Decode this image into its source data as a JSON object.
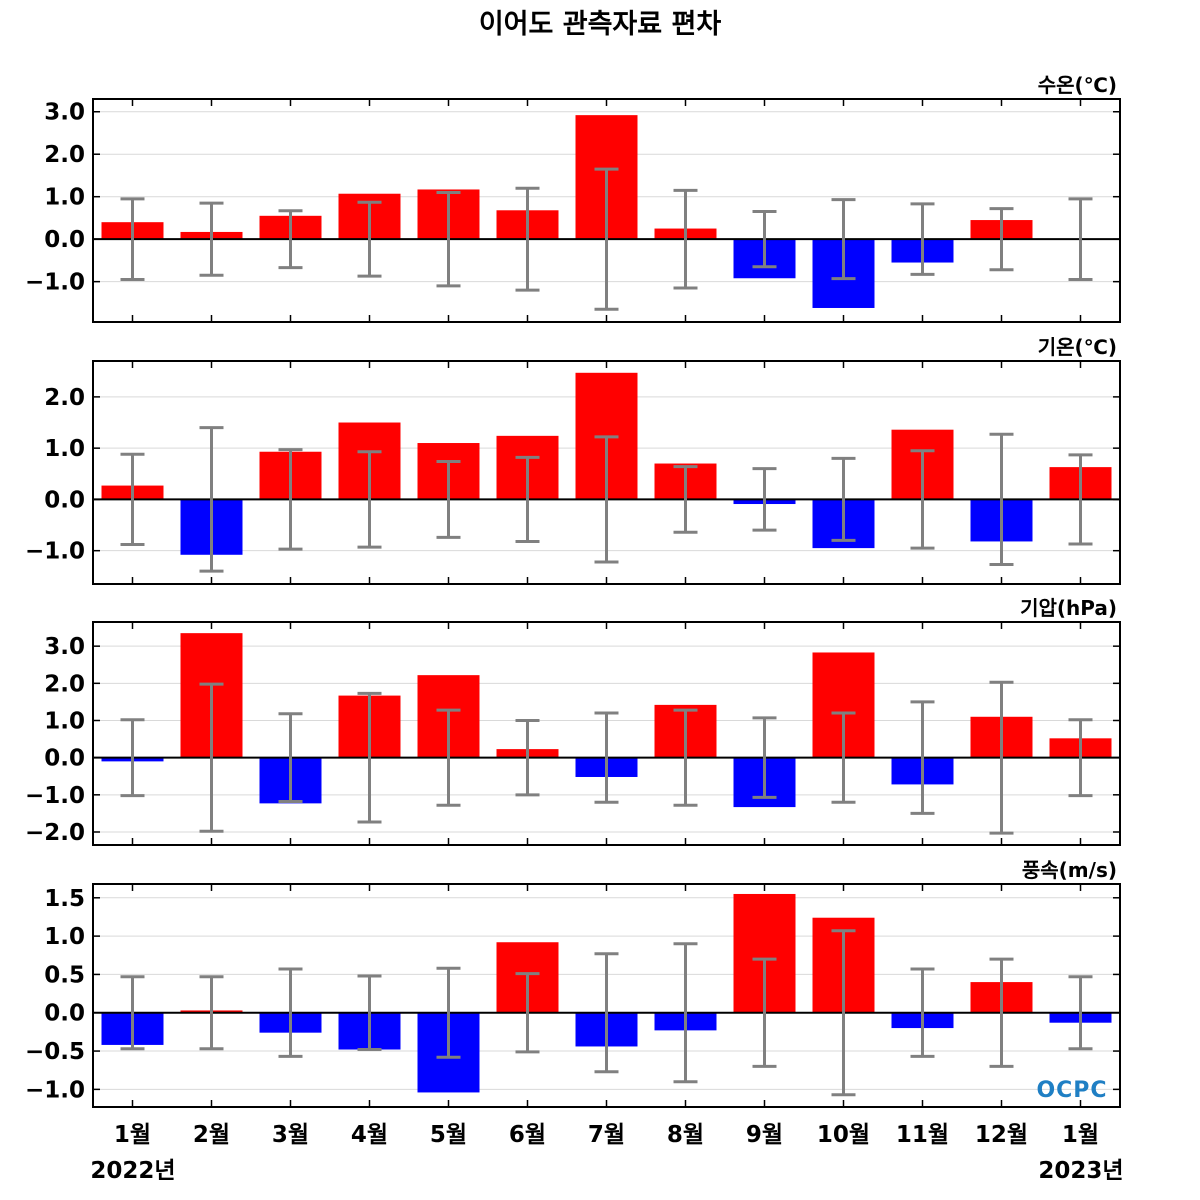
{
  "title": "이어도 관측자료 편차",
  "colors": {
    "positive": "#ff0000",
    "negative": "#0000ff",
    "errorbar": "#808080",
    "grid": "#d9d9d9",
    "logo": "#1f7fc4"
  },
  "logo": "OCPC",
  "x_years": [
    "2022년",
    "2023년"
  ],
  "chart_data": [
    {
      "type": "bar",
      "title": "수온(℃)",
      "categories": [
        "1월",
        "2월",
        "3월",
        "4월",
        "5월",
        "6월",
        "7월",
        "8월",
        "9월",
        "10월",
        "11월",
        "12월",
        "1월"
      ],
      "values": [
        0.4,
        0.17,
        0.55,
        1.07,
        1.17,
        0.68,
        2.92,
        0.25,
        -0.92,
        -1.62,
        -0.55,
        0.45,
        0.0
      ],
      "error": [
        0.95,
        0.85,
        0.67,
        0.87,
        1.1,
        1.2,
        1.65,
        1.15,
        0.65,
        0.93,
        0.83,
        0.72,
        0.95
      ],
      "ylim": [
        -1.95,
        3.3
      ],
      "yticks": [
        -1.0,
        0.0,
        1.0,
        2.0,
        3.0
      ],
      "ytick_labels": [
        "−1.0",
        "0.0",
        "1.0",
        "2.0",
        "3.0"
      ]
    },
    {
      "type": "bar",
      "title": "기온(℃)",
      "categories": [
        "1월",
        "2월",
        "3월",
        "4월",
        "5월",
        "6월",
        "7월",
        "8월",
        "9월",
        "10월",
        "11월",
        "12월",
        "1월"
      ],
      "values": [
        0.27,
        -1.08,
        0.93,
        1.5,
        1.1,
        1.24,
        2.47,
        0.7,
        -0.09,
        -0.95,
        1.36,
        -0.82,
        0.63
      ],
      "error": [
        0.88,
        1.4,
        0.97,
        0.93,
        0.74,
        0.82,
        1.22,
        0.64,
        0.6,
        0.8,
        0.95,
        1.27,
        0.87
      ],
      "ylim": [
        -1.65,
        2.7
      ],
      "yticks": [
        -1.0,
        0.0,
        1.0,
        2.0
      ],
      "ytick_labels": [
        "−1.0",
        "0.0",
        "1.0",
        "2.0"
      ]
    },
    {
      "type": "bar",
      "title": "기압(hPa)",
      "categories": [
        "1월",
        "2월",
        "3월",
        "4월",
        "5월",
        "6월",
        "7월",
        "8월",
        "9월",
        "10월",
        "11월",
        "12월",
        "1월"
      ],
      "values": [
        -0.1,
        3.35,
        -1.23,
        1.67,
        2.22,
        0.23,
        -0.52,
        1.42,
        -1.33,
        2.83,
        -0.72,
        1.1,
        0.52
      ],
      "error": [
        1.02,
        1.98,
        1.18,
        1.73,
        1.28,
        1.0,
        1.2,
        1.28,
        1.07,
        1.2,
        1.5,
        2.03,
        1.02
      ],
      "ylim": [
        -2.35,
        3.65
      ],
      "yticks": [
        -2.0,
        -1.0,
        0.0,
        1.0,
        2.0,
        3.0
      ],
      "ytick_labels": [
        "−2.0",
        "−1.0",
        "0.0",
        "1.0",
        "2.0",
        "3.0"
      ]
    },
    {
      "type": "bar",
      "title": "풍속(m/s)",
      "categories": [
        "1월",
        "2월",
        "3월",
        "4월",
        "5월",
        "6월",
        "7월",
        "8월",
        "9월",
        "10월",
        "11월",
        "12월",
        "1월"
      ],
      "values": [
        -0.42,
        0.03,
        -0.26,
        -0.48,
        -1.04,
        0.92,
        -0.44,
        -0.23,
        1.55,
        1.24,
        -0.2,
        0.4,
        -0.13
      ],
      "error": [
        0.47,
        0.47,
        0.57,
        0.48,
        0.58,
        0.51,
        0.77,
        0.9,
        0.7,
        1.07,
        0.57,
        0.7,
        0.47
      ],
      "ylim": [
        -1.23,
        1.68
      ],
      "yticks": [
        -1.0,
        -0.5,
        0.0,
        0.5,
        1.0,
        1.5
      ],
      "ytick_labels": [
        "−1.0",
        "−0.5",
        "0.0",
        "0.5",
        "1.0",
        "1.5"
      ]
    }
  ]
}
